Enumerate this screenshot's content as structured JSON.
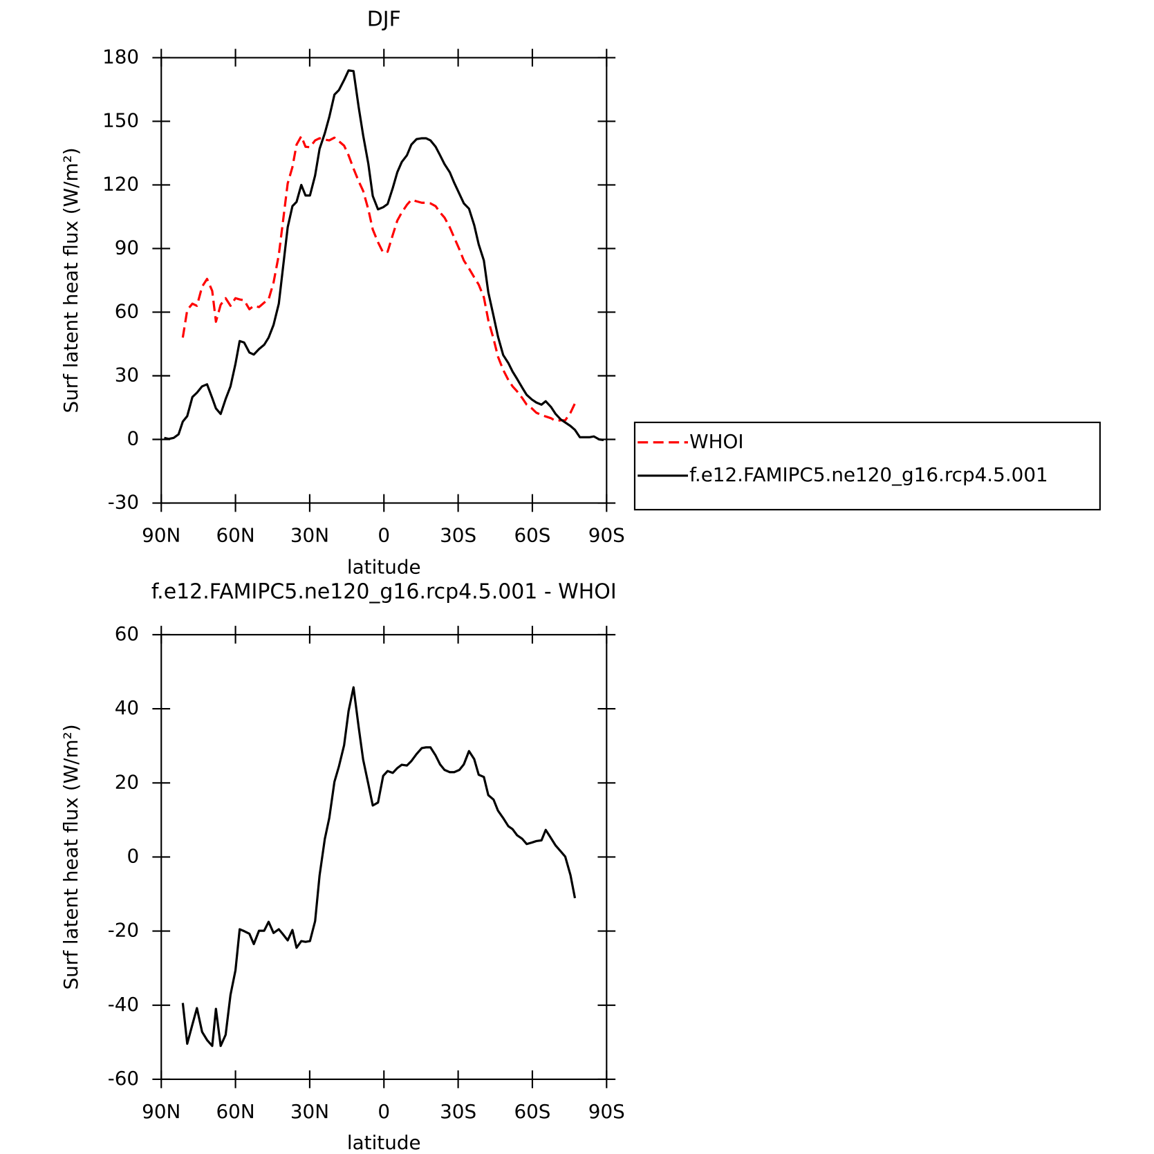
{
  "chart_data": [
    {
      "type": "line",
      "title": "DJF",
      "x_label": "latitude",
      "y_label": "Surf latent heat flux (W/m²)",
      "x": [
        88.8,
        87,
        85,
        83,
        81.3,
        79.5,
        77.4,
        75.6,
        73.5,
        71.5,
        69.4,
        67.9,
        66,
        64,
        62,
        60,
        58.3,
        56.5,
        54.4,
        52.6,
        50.5,
        48.4,
        46.6,
        44.6,
        42.5,
        41,
        38.9,
        37,
        35.3,
        33.4,
        31.7,
        29.9,
        27.8,
        26,
        23.9,
        22.1,
        20,
        18.2,
        16.1,
        14.3,
        12.3,
        10.2,
        8.4,
        6.3,
        4.5,
        2.4,
        0.3,
        -1.5,
        -3.6,
        -5.4,
        -7.2,
        -9.3,
        -11.1,
        -13.2,
        -15.3,
        -17,
        -18.8,
        -20.9,
        -22.7,
        -24.5,
        -26.6,
        -28.4,
        -30.5,
        -32.3,
        -34.4,
        -36.5,
        -38.3,
        -40.4,
        -42.2,
        -44.3,
        -46.1,
        -48.2,
        -50.3,
        -52,
        -53.8,
        -55.9,
        -57.7,
        -59.8,
        -61.6,
        -63.7,
        -65.4,
        -67.5,
        -69.4,
        -71.5,
        -73.3,
        -75.4,
        -77.2,
        -79.2,
        -81,
        -83,
        -84.9,
        -87,
        -88.8
      ],
      "series": [
        {
          "name": "WHOI",
          "color": "#ff0000",
          "dash": true,
          "values": [
            null,
            null,
            null,
            null,
            48,
            61,
            64,
            63,
            72,
            75.7,
            70,
            55.5,
            63.5,
            66.6,
            63,
            66.6,
            66,
            65.6,
            61.4,
            63,
            62.4,
            64.5,
            66,
            74,
            87,
            101,
            120.7,
            128.4,
            139,
            143,
            138,
            137.8,
            141,
            142,
            141.4,
            141,
            142.3,
            140.6,
            138.5,
            134,
            127.7,
            121.7,
            117.2,
            108.5,
            99,
            93,
            88,
            88.5,
            96.5,
            103.2,
            107,
            110.6,
            113,
            112.3,
            111.6,
            111.6,
            111.3,
            110,
            107,
            104.6,
            100,
            95.2,
            89.6,
            84.4,
            80.6,
            76.4,
            73,
            67,
            56.2,
            47.4,
            39,
            32.8,
            28,
            25,
            22.7,
            19.5,
            16.4,
            14.6,
            12.6,
            11.5,
            10.8,
            10,
            8.7,
            9,
            9,
            12.6,
            17,
            null,
            null,
            null,
            null,
            null,
            null
          ]
        },
        {
          "name": "f.e12.FAMIPC5.ne120_g16.rcp4.5.001",
          "color": "#000000",
          "dash": false,
          "values": [
            0.7,
            0.2,
            0.7,
            2.4,
            8.4,
            11,
            20,
            22,
            25,
            26,
            19.5,
            14.6,
            12,
            19,
            25,
            35.6,
            46.4,
            45.7,
            41,
            40,
            42.6,
            44.6,
            48,
            54,
            64,
            79,
            100,
            110,
            112,
            120,
            115,
            115,
            124.5,
            137,
            144.4,
            152,
            162.6,
            164.7,
            169.5,
            174,
            173.7,
            156.6,
            143.4,
            130,
            114.8,
            108.5,
            109.5,
            111,
            118.6,
            126,
            130.8,
            134,
            139,
            141.6,
            142,
            142,
            141,
            138,
            134,
            129.8,
            126,
            121,
            115.8,
            111.3,
            108.8,
            101,
            92,
            84.4,
            69.4,
            58.2,
            48.5,
            39.8,
            36,
            32,
            28.6,
            24.4,
            21,
            18.8,
            17.4,
            16.4,
            18,
            15.3,
            12,
            9.4,
            8,
            6.3,
            4.5,
            1,
            1,
            1,
            1.4,
            0,
            -0.3
          ]
        }
      ],
      "xlim": [
        90,
        -90
      ],
      "xticks": [
        {
          "value": 90,
          "label": "90N"
        },
        {
          "value": 60,
          "label": "60N"
        },
        {
          "value": 30,
          "label": "30N"
        },
        0,
        {
          "value": -30,
          "label": "30S"
        },
        {
          "value": -60,
          "label": "60S"
        },
        {
          "value": -90,
          "label": "90S"
        }
      ],
      "ylim": [
        -30,
        180
      ],
      "yticks": [
        -30,
        0,
        30,
        60,
        90,
        120,
        150,
        180
      ],
      "legend": "right"
    },
    {
      "type": "line",
      "title": "f.e12.FAMIPC5.ne120_g16.rcp4.5.001 - WHOI",
      "x_label": "latitude",
      "y_label": "Surf latent heat flux (W/m²)",
      "x": [
        88.8,
        87,
        85,
        83,
        81.3,
        79.5,
        77.4,
        75.6,
        73.5,
        71.5,
        69.4,
        67.9,
        66,
        64,
        62,
        60,
        58.3,
        56.5,
        54.4,
        52.6,
        50.5,
        48.4,
        46.6,
        44.6,
        42.5,
        41,
        38.9,
        37,
        35.3,
        33.4,
        31.7,
        29.9,
        27.8,
        26,
        23.9,
        22.1,
        20,
        18.2,
        16.1,
        14.3,
        12.3,
        10.2,
        8.4,
        6.3,
        4.5,
        2.4,
        0.3,
        -1.5,
        -3.6,
        -5.4,
        -7.2,
        -9.3,
        -11.1,
        -13.2,
        -15.3,
        -17,
        -18.8,
        -20.9,
        -22.7,
        -24.5,
        -26.6,
        -28.4,
        -30.5,
        -32.3,
        -34.4,
        -36.5,
        -38.3,
        -40.4,
        -42.2,
        -44.3,
        -46.1,
        -48.2,
        -50.3,
        -52,
        -53.8,
        -55.9,
        -57.7,
        -59.8,
        -61.6,
        -63.7,
        -65.4,
        -67.5,
        -69.4,
        -71.5,
        -73.3,
        -75.4,
        -77.2,
        -79.2,
        -81,
        -83,
        -84.9,
        -87,
        -88.8
      ],
      "color": "#000000",
      "values": [
        null,
        null,
        null,
        null,
        -39.4,
        -50.4,
        -45.2,
        -40.8,
        -47.2,
        -49.4,
        -51,
        -41,
        -51,
        -48,
        -37.2,
        -30.6,
        -19.5,
        -20,
        -20.7,
        -23.5,
        -19.9,
        -19.9,
        -17.5,
        -20.5,
        -19.5,
        -20.7,
        -22.5,
        -19.7,
        -24.5,
        -22.7,
        -22.9,
        -22.7,
        -17.3,
        -5,
        4.9,
        10.5,
        20.3,
        24.4,
        30.2,
        39.4,
        45.8,
        35,
        26.3,
        19.7,
        13.9,
        14.7,
        21.9,
        23.2,
        22.7,
        24,
        24.9,
        24.7,
        25.9,
        27.8,
        29.4,
        29.6,
        29.6,
        27.4,
        25,
        23.5,
        22.9,
        22.9,
        23.5,
        25,
        28.6,
        26.4,
        22.2,
        21.6,
        16.7,
        15.5,
        12.5,
        10.5,
        8.3,
        7.5,
        5.9,
        4.9,
        3.5,
        3.9,
        4.3,
        4.5,
        7.3,
        5.1,
        3.1,
        1.5,
        0.1,
        -4.9,
        -11.1,
        null,
        null,
        null,
        null,
        null,
        null
      ],
      "xlim": [
        90,
        -90
      ],
      "xticks": [
        {
          "value": 90,
          "label": "90N"
        },
        {
          "value": 60,
          "label": "60N"
        },
        {
          "value": 30,
          "label": "30N"
        },
        0,
        {
          "value": -30,
          "label": "30S"
        },
        {
          "value": -60,
          "label": "60S"
        },
        {
          "value": -90,
          "label": "90S"
        }
      ],
      "ylim": [
        -60,
        60
      ],
      "yticks": [
        -60,
        -40,
        -20,
        0,
        20,
        40,
        60
      ]
    }
  ]
}
